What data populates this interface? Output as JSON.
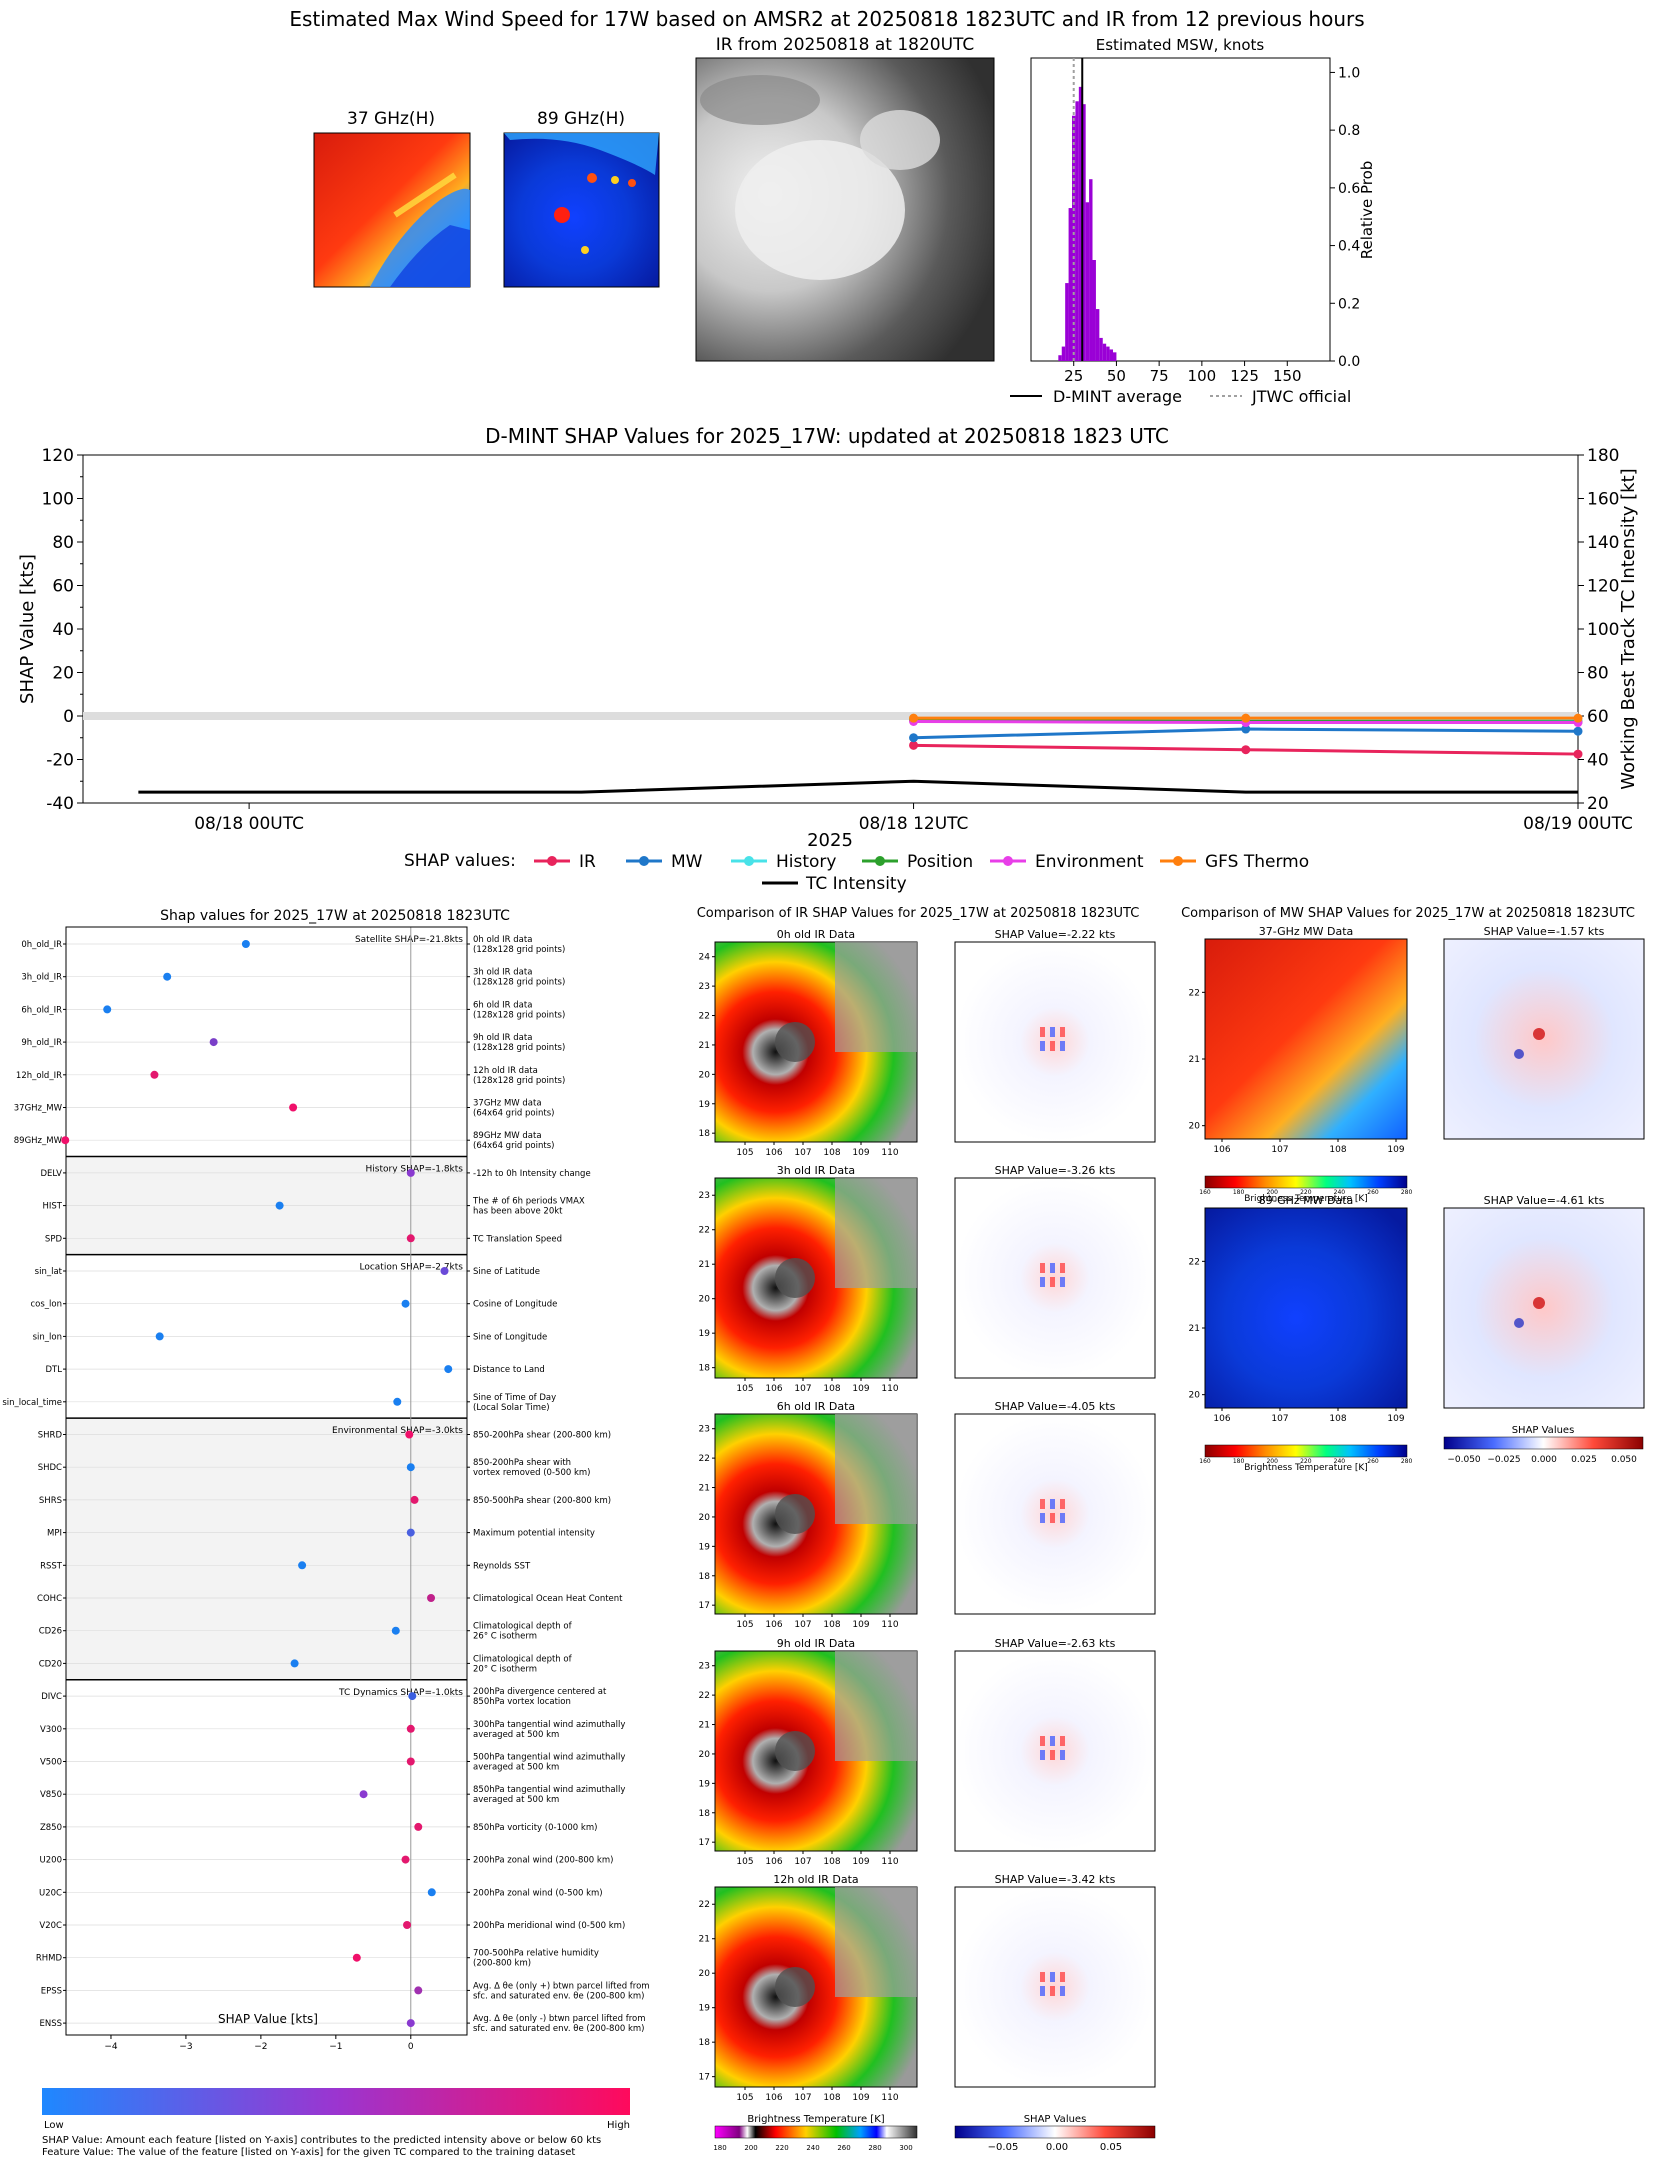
{
  "page_title": "Estimated Max Wind Speed for 17W based on AMSR2 at 20250818 1823UTC and IR from 12 previous hours",
  "top_panels": {
    "mw37_title": "37 GHz(H)",
    "mw89_title": "89 GHz(H)",
    "ir_title": "IR from 20250818 at 1820UTC",
    "hist_title": "Estimated MSW, knots",
    "hist_ylabel": "Relative Prob",
    "legend": [
      "D-MINT average",
      "JTWC official"
    ]
  },
  "timeline": {
    "title": "D-MINT SHAP Values for 2025_17W: updated at 20250818 1823 UTC",
    "ylabel_left": "SHAP Value [kts]",
    "ylabel_right": "Working Best Track TC Intensity [kt]",
    "xlabel": "2025",
    "legend_title": "SHAP values:",
    "legend_intensity": "TC Intensity"
  },
  "bottom": {
    "shap_title": "Shap values for 2025_17W at 20250818 1823UTC",
    "xlabel": "SHAP Value [kts]",
    "colorbar_low": "Low",
    "colorbar_high": "High",
    "footnote1": "SHAP Value: Amount each feature [listed on Y-axis] contributes to the predicted intensity above or below 60 kts",
    "footnote2": "Feature Value: The value of the feature [listed on Y-axis] for the given TC compared to the training dataset",
    "ir_comp_title": "Comparison of IR SHAP Values for 2025_17W at 20250818 1823UTC",
    "mw_comp_title": "Comparison of MW SHAP Values for 2025_17W at 20250818 1823UTC",
    "ir_panels": [
      {
        "label": "0h old IR Data",
        "shap": "SHAP Value=-2.22 kts",
        "ylabels": [
          "24",
          "23",
          "22",
          "21",
          "20",
          "19",
          "18"
        ]
      },
      {
        "label": "3h old IR Data",
        "shap": "SHAP Value=-3.26 kts",
        "ylabels": [
          "23",
          "22",
          "21",
          "20",
          "19",
          "18"
        ]
      },
      {
        "label": "6h old IR Data",
        "shap": "SHAP Value=-4.05 kts",
        "ylabels": [
          "23",
          "22",
          "21",
          "20",
          "19",
          "18",
          "17"
        ]
      },
      {
        "label": "9h old IR Data",
        "shap": "SHAP Value=-2.63 kts",
        "ylabels": [
          "23",
          "22",
          "21",
          "20",
          "19",
          "18",
          "17"
        ]
      },
      {
        "label": "12h old IR Data",
        "shap": "SHAP Value=-3.42 kts",
        "ylabels": [
          "22",
          "21",
          "20",
          "19",
          "18",
          "17"
        ]
      }
    ],
    "ir_xticks": [
      "105",
      "106",
      "107",
      "108",
      "109",
      "110"
    ],
    "mw_panels": [
      {
        "label": "37-GHz MW Data",
        "shap": "SHAP Value=-1.57 kts",
        "ylabels": [
          "22",
          "21",
          "20"
        ]
      },
      {
        "label": "89-GHz MW Data",
        "shap": "SHAP Value=-4.61 kts",
        "ylabels": [
          "22",
          "21",
          "20"
        ]
      }
    ],
    "mw_xticks": [
      "106",
      "107",
      "108",
      "109"
    ],
    "bt_label": "Brightness Temperature [K]",
    "shap_values_label": "SHAP Values",
    "ir_bt_ticks": [
      "180",
      "200",
      "220",
      "240",
      "260",
      "280",
      "300"
    ],
    "mw_bt_ticks": [
      "160",
      "180",
      "200",
      "220",
      "240",
      "260",
      "280"
    ],
    "shap_cbar_ticks": [
      "−0.05",
      "0.00",
      "0.05"
    ],
    "mw_shap_cbar_ticks": [
      "−0.050",
      "−0.025",
      "0.000",
      "0.025",
      "0.050"
    ]
  },
  "chart_data": [
    {
      "type": "bar",
      "title": "Estimated MSW, knots",
      "xlabel": "",
      "ylabel": "Relative Prob",
      "x": [
        17,
        19,
        21,
        23,
        25,
        27,
        29,
        31,
        33,
        35,
        37,
        39,
        41,
        43,
        45,
        47,
        49
      ],
      "values": [
        0.02,
        0.05,
        0.27,
        0.53,
        0.85,
        0.9,
        0.95,
        0.89,
        0.55,
        0.63,
        0.35,
        0.18,
        0.08,
        0.06,
        0.05,
        0.04,
        0.03
      ],
      "xlim": [
        0,
        175
      ],
      "ylim": [
        0,
        1.05
      ],
      "xticks": [
        25,
        50,
        75,
        100,
        125,
        150
      ],
      "yticks": [
        0.0,
        0.2,
        0.4,
        0.6,
        0.8,
        1.0
      ],
      "dmint_average": 30,
      "jtwc_official": 25,
      "bar_color": "#9a00d6"
    },
    {
      "type": "line",
      "title": "D-MINT SHAP Values for 2025_17W: updated at 20250818 1823 UTC",
      "xlabel": "2025",
      "ylabel": "SHAP Value [kts]",
      "x_ticks": [
        "08/18 00UTC",
        "08/18 12UTC",
        "08/19 00UTC"
      ],
      "x_hours_range": [
        -3,
        24
      ],
      "ylim": [
        -40,
        120
      ],
      "y2lim": [
        20,
        180
      ],
      "yticks": [
        -40,
        -20,
        0,
        20,
        40,
        60,
        80,
        100,
        120
      ],
      "y2ticks": [
        20,
        40,
        60,
        80,
        100,
        120,
        140,
        160,
        180
      ],
      "series": [
        {
          "name": "IR",
          "color": "#e8245c",
          "x": [
            12,
            18,
            24
          ],
          "values": [
            -13.5,
            -15.5,
            -17.5
          ]
        },
        {
          "name": "MW",
          "color": "#1f77c9",
          "x": [
            12,
            18,
            24
          ],
          "values": [
            -10,
            -6,
            -7
          ]
        },
        {
          "name": "History",
          "color": "#48e2e8",
          "x": [
            12,
            18,
            24
          ],
          "values": [
            -1.5,
            -1.5,
            -2
          ]
        },
        {
          "name": "Position",
          "color": "#2ca02c",
          "x": [
            12,
            18,
            24
          ],
          "values": [
            -2,
            -2.5,
            -2.7
          ]
        },
        {
          "name": "Environment",
          "color": "#e83ee8",
          "x": [
            12,
            18,
            24
          ],
          "values": [
            -2.5,
            -3,
            -3
          ]
        },
        {
          "name": "GFS Thermo",
          "color": "#ff7f0e",
          "x": [
            12,
            18,
            24
          ],
          "values": [
            -1,
            -1,
            -1
          ]
        }
      ],
      "intensity": {
        "name": "TC Intensity",
        "x": [
          -2,
          6,
          12,
          18,
          24
        ],
        "values": [
          25,
          25,
          30,
          25,
          25
        ]
      }
    },
    {
      "type": "scatter",
      "title": "Shap values for 2025_17W at 20250818 1823UTC",
      "xlabel": "SHAP Value [kts]",
      "xlim": [
        -4.6,
        0.75
      ],
      "xticks": [
        -4,
        -3,
        -2,
        -1,
        0
      ],
      "groups": [
        {
          "label": "Satellite SHAP=-21.8kts",
          "shaded": false
        },
        {
          "label": "History SHAP=-1.8kts",
          "shaded": true
        },
        {
          "label": "Location SHAP=-2.7kts",
          "shaded": false
        },
        {
          "label": "Environmental SHAP=-3.0kts",
          "shaded": true
        },
        {
          "label": "TC Dynamics SHAP=-1.0kts",
          "shaded": false
        }
      ],
      "features": [
        {
          "name": "0h_old_IR",
          "desc": [
            "0h old IR data",
            "(128x128 grid points)"
          ],
          "value": -2.2,
          "color": "#1a7ff0",
          "group": 0
        },
        {
          "name": "3h_old_IR",
          "desc": [
            "3h old IR data",
            "(128x128 grid points)"
          ],
          "value": -3.25,
          "color": "#1a7ff0",
          "group": 0
        },
        {
          "name": "6h_old_IR",
          "desc": [
            "6h old IR data",
            "(128x128 grid points)"
          ],
          "value": -4.05,
          "color": "#1a7ff0",
          "group": 0
        },
        {
          "name": "9h_old_IR",
          "desc": [
            "9h old IR data",
            "(128x128 grid points)"
          ],
          "value": -2.63,
          "color": "#7a3fc8",
          "group": 0
        },
        {
          "name": "12h_old_IR",
          "desc": [
            "12h old IR data",
            "(128x128 grid points)"
          ],
          "value": -3.42,
          "color": "#e3186e",
          "group": 0
        },
        {
          "name": "37GHz_MW",
          "desc": [
            "37GHz MW data",
            "(64x64 grid points)"
          ],
          "value": -1.57,
          "color": "#f0106a",
          "group": 0
        },
        {
          "name": "89GHz_MW",
          "desc": [
            "89GHz MW data",
            "(64x64 grid points)"
          ],
          "value": -4.61,
          "color": "#f0106a",
          "group": 0
        },
        {
          "name": "DELV",
          "desc": [
            "-12h to 0h Intensity change"
          ],
          "value": 0.0,
          "color": "#8a3ad0",
          "group": 1
        },
        {
          "name": "HIST",
          "desc": [
            "The # of 6h periods VMAX",
            "has been above 20kt"
          ],
          "value": -1.75,
          "color": "#1a7ff0",
          "group": 1
        },
        {
          "name": "SPD",
          "desc": [
            "TC Translation Speed"
          ],
          "value": 0.0,
          "color": "#e3186e",
          "group": 1
        },
        {
          "name": "sin_lat",
          "desc": [
            "Sine of Latitude"
          ],
          "value": 0.45,
          "color": "#6a4ad8",
          "group": 2
        },
        {
          "name": "cos_lon",
          "desc": [
            "Cosine of Longitude"
          ],
          "value": -0.07,
          "color": "#1a7ff0",
          "group": 2
        },
        {
          "name": "sin_lon",
          "desc": [
            "Sine of Longitude"
          ],
          "value": -3.35,
          "color": "#1a7ff0",
          "group": 2
        },
        {
          "name": "DTL",
          "desc": [
            "Distance to Land"
          ],
          "value": 0.5,
          "color": "#1a7ff0",
          "group": 2
        },
        {
          "name": "sin_local_time",
          "desc": [
            "Sine of Time of Day",
            "(Local Solar Time)"
          ],
          "value": -0.18,
          "color": "#1a7ff0",
          "group": 2
        },
        {
          "name": "SHRD",
          "desc": [
            "850-200hPa shear (200-800 km)"
          ],
          "value": -0.02,
          "color": "#f0106a",
          "group": 3
        },
        {
          "name": "SHDC",
          "desc": [
            "850-200hPa shear with",
            "vortex removed (0-500 km)"
          ],
          "value": 0.0,
          "color": "#1a7ff0",
          "group": 3
        },
        {
          "name": "SHRS",
          "desc": [
            "850-500hPa shear (200-800 km)"
          ],
          "value": 0.05,
          "color": "#e3186e",
          "group": 3
        },
        {
          "name": "MPI",
          "desc": [
            "Maximum potential intensity"
          ],
          "value": 0.0,
          "color": "#4a60e0",
          "group": 3
        },
        {
          "name": "RSST",
          "desc": [
            "Reynolds SST"
          ],
          "value": -1.45,
          "color": "#1a7ff0",
          "group": 3
        },
        {
          "name": "COHC",
          "desc": [
            "Climatological Ocean Heat Content"
          ],
          "value": 0.27,
          "color": "#c0208a",
          "group": 3
        },
        {
          "name": "CD26",
          "desc": [
            "Climatological depth of",
            "26° C isotherm"
          ],
          "value": -0.2,
          "color": "#1a7ff0",
          "group": 3
        },
        {
          "name": "CD20",
          "desc": [
            "Climatological depth of",
            "20° C isotherm"
          ],
          "value": -1.55,
          "color": "#1a7ff0",
          "group": 3
        },
        {
          "name": "DIVC",
          "desc": [
            "200hPa divergence centered at",
            "850hPa vortex location"
          ],
          "value": 0.02,
          "color": "#3a5ee0",
          "group": 4
        },
        {
          "name": "V300",
          "desc": [
            "300hPa tangential wind azimuthally",
            "averaged at 500 km"
          ],
          "value": 0.0,
          "color": "#e3186e",
          "group": 4
        },
        {
          "name": "V500",
          "desc": [
            "500hPa tangential wind azimuthally",
            "averaged at 500 km"
          ],
          "value": 0.0,
          "color": "#e3186e",
          "group": 4
        },
        {
          "name": "V850",
          "desc": [
            "850hPa tangential wind azimuthally",
            "averaged at 500 km"
          ],
          "value": -0.63,
          "color": "#8a3ad0",
          "group": 4
        },
        {
          "name": "Z850",
          "desc": [
            "850hPa vorticity (0-1000 km)"
          ],
          "value": 0.1,
          "color": "#e3186e",
          "group": 4
        },
        {
          "name": "U200",
          "desc": [
            "200hPa zonal wind (200-800 km)"
          ],
          "value": -0.07,
          "color": "#e3186e",
          "group": 4
        },
        {
          "name": "U20C",
          "desc": [
            "200hPa zonal wind (0-500 km)"
          ],
          "value": 0.28,
          "color": "#1a7ff0",
          "group": 4
        },
        {
          "name": "V20C",
          "desc": [
            "200hPa meridional wind (0-500 km)"
          ],
          "value": -0.05,
          "color": "#e3186e",
          "group": 4
        },
        {
          "name": "RHMD",
          "desc": [
            "700-500hPa relative humidity",
            "(200-800 km)"
          ],
          "value": -0.72,
          "color": "#f0106a",
          "group": 4
        },
        {
          "name": "EPSS",
          "desc": [
            "Avg. Δ θe (only +) btwn parcel lifted from",
            "sfc. and saturated env. θe (200-800 km)"
          ],
          "value": 0.1,
          "color": "#a030b0",
          "group": 4
        },
        {
          "name": "ENSS",
          "desc": [
            "Avg. Δ θe (only -) btwn parcel lifted from",
            "sfc. and saturated env. θe (200-800 km)"
          ],
          "value": 0.0,
          "color": "#8a3ad0",
          "group": 4
        }
      ]
    }
  ]
}
